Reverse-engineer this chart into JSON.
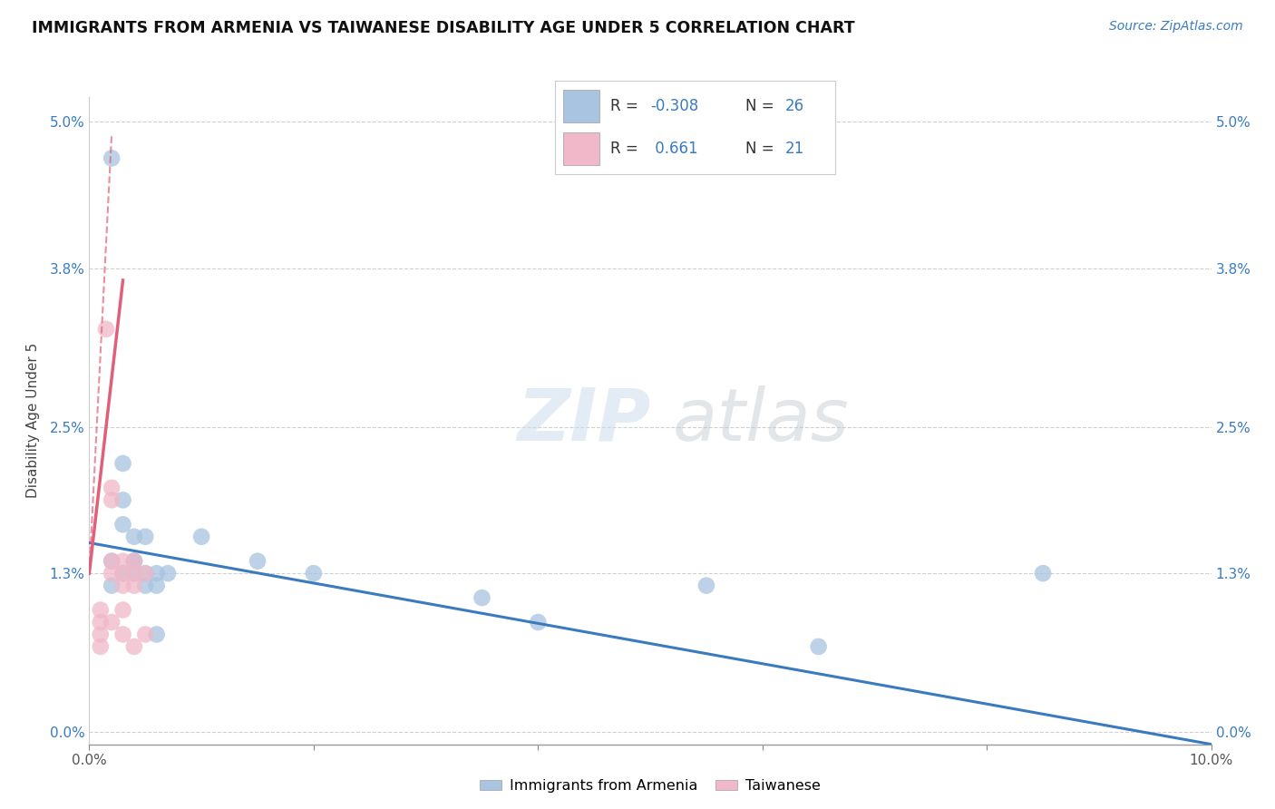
{
  "title": "IMMIGRANTS FROM ARMENIA VS TAIWANESE DISABILITY AGE UNDER 5 CORRELATION CHART",
  "source": "Source: ZipAtlas.com",
  "ylabel": "Disability Age Under 5",
  "xlim": [
    0.0,
    0.1
  ],
  "ylim": [
    -0.001,
    0.052
  ],
  "yticks": [
    0.0,
    0.013,
    0.025,
    0.038,
    0.05
  ],
  "ytick_labels": [
    "0.0%",
    "1.3%",
    "2.5%",
    "3.8%",
    "5.0%"
  ],
  "xticks": [
    0.0,
    0.02,
    0.04,
    0.06,
    0.08,
    0.1
  ],
  "xtick_labels": [
    "0.0%",
    "",
    "",
    "",
    "",
    "10.0%"
  ],
  "blue_color": "#a8c4e0",
  "pink_color": "#f0b8c8",
  "blue_line_color": "#3a7bbf",
  "pink_line_color": "#e0607a",
  "background_color": "#ffffff",
  "grid_color": "#d0d0d0",
  "blue_scatter_x": [
    0.002,
    0.003,
    0.003,
    0.004,
    0.004,
    0.004,
    0.005,
    0.005,
    0.006,
    0.006,
    0.007,
    0.002,
    0.003,
    0.004,
    0.005,
    0.006,
    0.002,
    0.003,
    0.01,
    0.015,
    0.02,
    0.035,
    0.04,
    0.055,
    0.065,
    0.085
  ],
  "blue_scatter_y": [
    0.047,
    0.022,
    0.017,
    0.016,
    0.014,
    0.014,
    0.013,
    0.016,
    0.013,
    0.012,
    0.013,
    0.012,
    0.013,
    0.013,
    0.012,
    0.008,
    0.014,
    0.019,
    0.016,
    0.014,
    0.013,
    0.011,
    0.009,
    0.012,
    0.007,
    0.013
  ],
  "pink_scatter_x": [
    0.001,
    0.001,
    0.001,
    0.001,
    0.0015,
    0.002,
    0.002,
    0.002,
    0.002,
    0.002,
    0.003,
    0.003,
    0.003,
    0.003,
    0.003,
    0.004,
    0.004,
    0.004,
    0.004,
    0.005,
    0.005
  ],
  "pink_scatter_y": [
    0.008,
    0.009,
    0.01,
    0.007,
    0.033,
    0.02,
    0.019,
    0.014,
    0.013,
    0.009,
    0.014,
    0.013,
    0.012,
    0.01,
    0.008,
    0.014,
    0.013,
    0.012,
    0.007,
    0.013,
    0.008
  ],
  "blue_line_x0": 0.0,
  "blue_line_y0": 0.0155,
  "blue_line_x1": 0.1,
  "blue_line_y1": -0.001,
  "pink_line_solid_x0": 0.0,
  "pink_line_solid_y0": 0.013,
  "pink_line_solid_x1": 0.003,
  "pink_line_solid_y1": 0.037,
  "pink_line_dash_x0": 0.0,
  "pink_line_dash_y0": 0.013,
  "pink_line_dash_x1": 0.002,
  "pink_line_dash_y1": 0.049
}
